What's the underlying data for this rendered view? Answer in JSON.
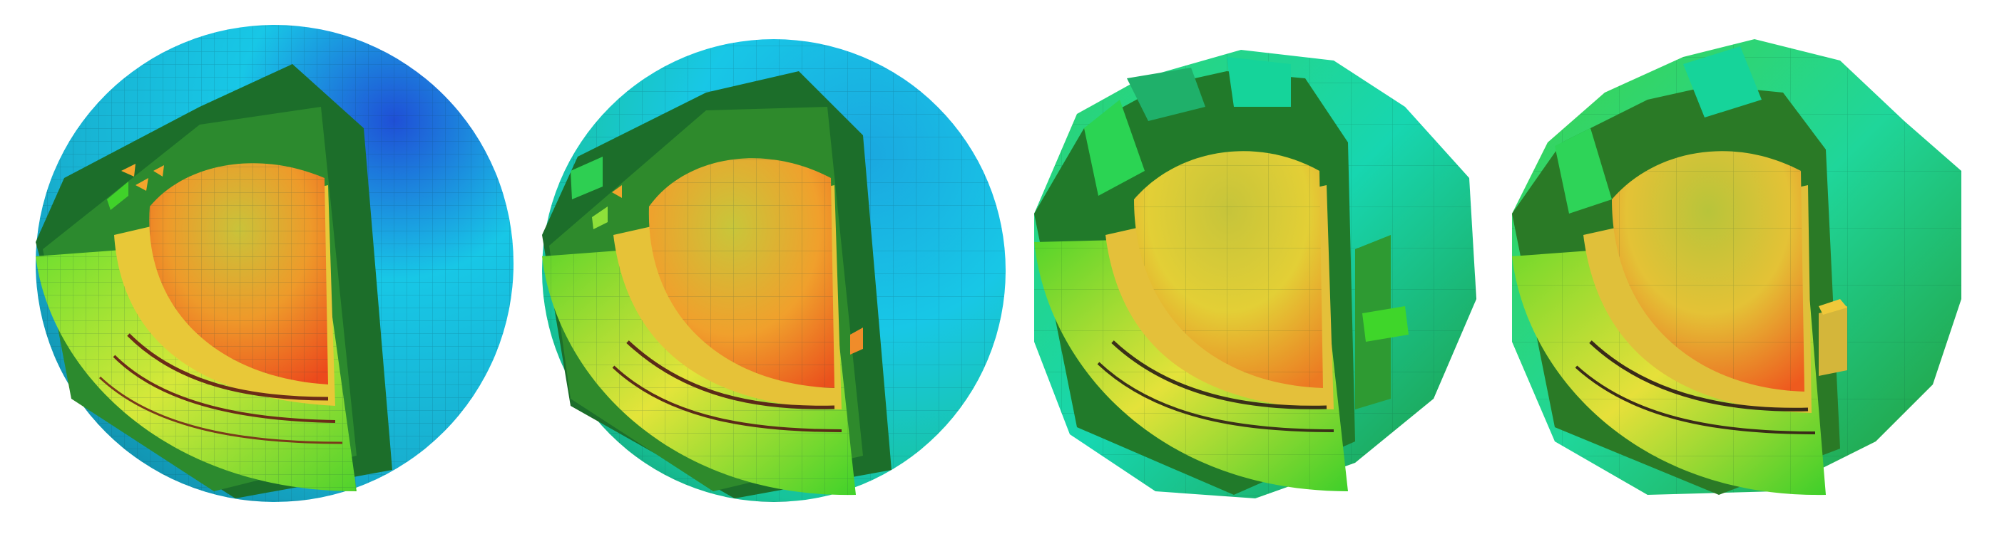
{
  "figure": {
    "panels": [
      {
        "id": "panel-1",
        "mesh": "fine"
      },
      {
        "id": "panel-2",
        "mesh": "medium"
      },
      {
        "id": "panel-3",
        "mesh": "coarse"
      },
      {
        "id": "panel-4",
        "mesh": "very-coarse"
      }
    ],
    "colormap": [
      "#1f4fd6",
      "#18c7e6",
      "#16d98f",
      "#40d22a",
      "#d6e83a",
      "#f3a52c",
      "#ef5a1c",
      "#e2241c"
    ]
  }
}
